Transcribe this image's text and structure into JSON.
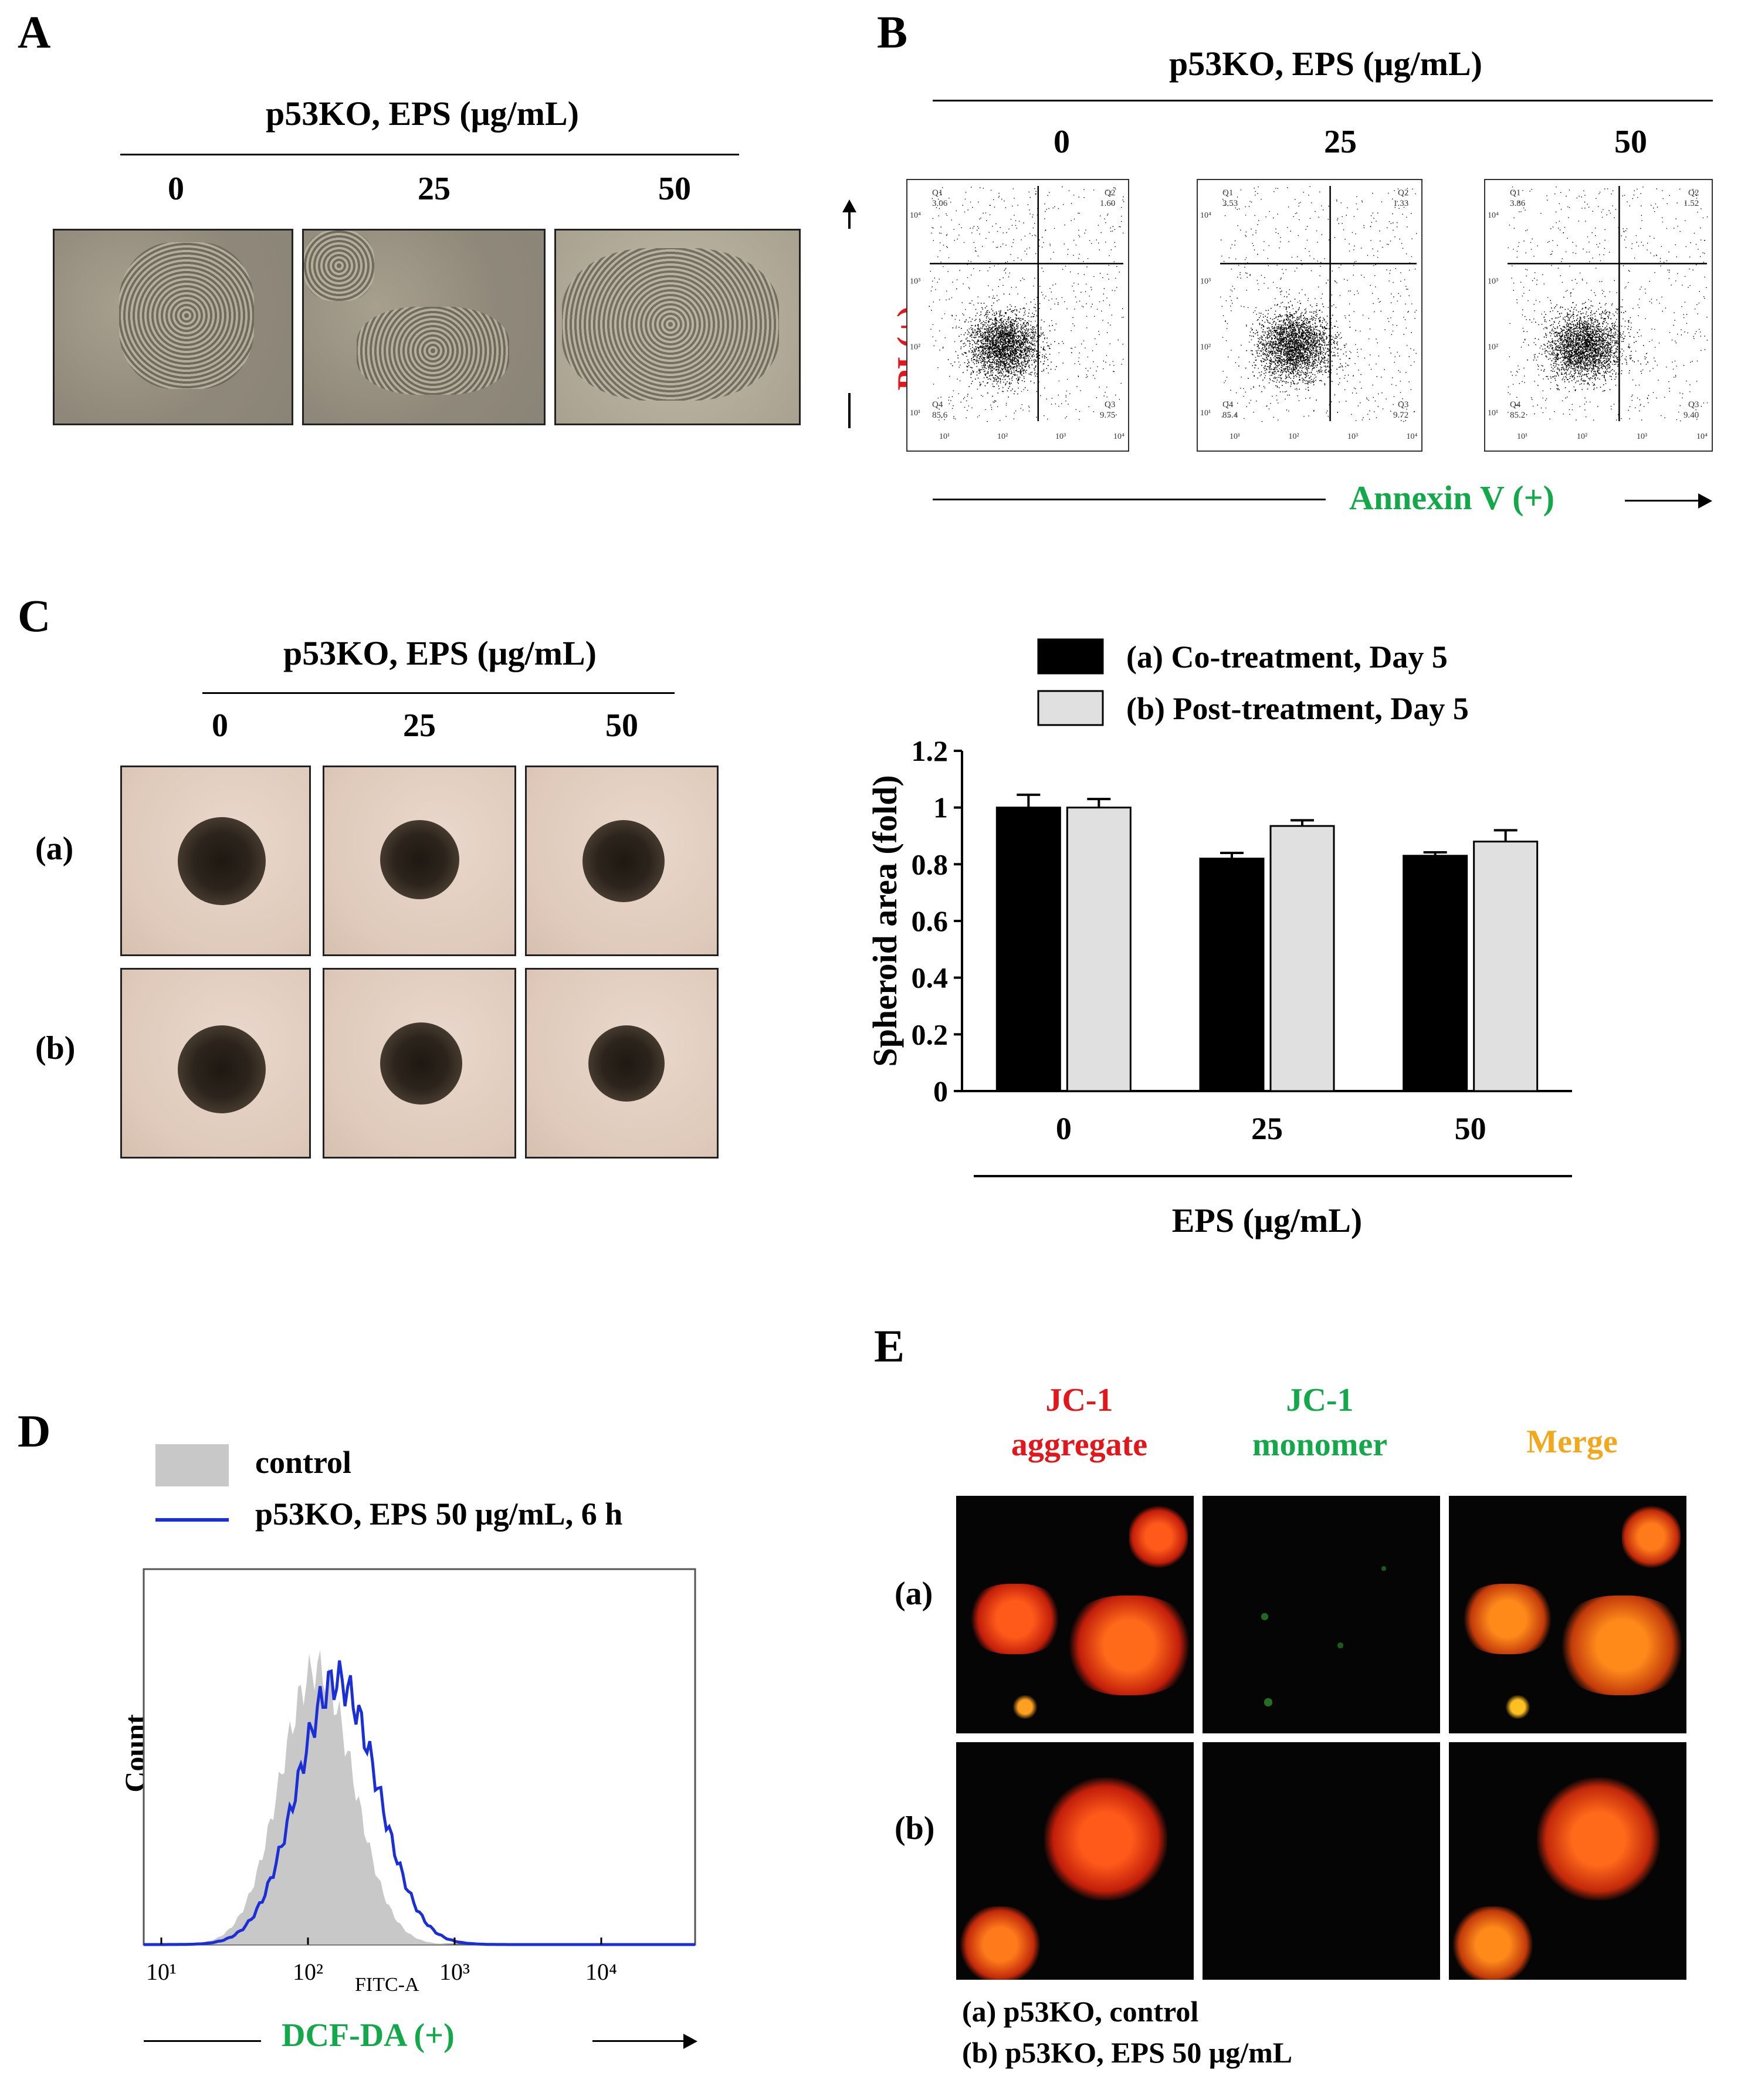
{
  "panel_A": {
    "label": "A",
    "title": "p53KO, EPS (μg/mL)",
    "doses": [
      "0",
      "25",
      "50"
    ]
  },
  "panel_B": {
    "label": "B",
    "title": "p53KO, EPS (μg/mL)",
    "doses": [
      "0",
      "25",
      "50"
    ],
    "y_axis": "PI (+)",
    "x_axis": "Annexin V (+)",
    "plots": [
      {
        "q1": "3.06",
        "q2": "1.60",
        "q3": "9.75",
        "q4": "85.6"
      },
      {
        "q1": "3.53",
        "q2": "1.33",
        "q3": "9.72",
        "q4": "85.4"
      },
      {
        "q1": "3.86",
        "q2": "1.52",
        "q3": "9.40",
        "q4": "85.2"
      }
    ],
    "quad_names": [
      "Q1",
      "Q2",
      "Q3",
      "Q4"
    ],
    "ticks": [
      "10¹",
      "10²",
      "10³",
      "10⁴"
    ]
  },
  "panel_C": {
    "label": "C",
    "title": "p53KO, EPS (μg/mL)",
    "doses": [
      "0",
      "25",
      "50"
    ],
    "rows": [
      "(a)",
      "(b)"
    ]
  },
  "chart_data": {
    "type": "bar",
    "categories": [
      "0",
      "25",
      "50"
    ],
    "series": [
      {
        "name": "(a) Co-treatment, Day 5",
        "values": [
          1.0,
          0.82,
          0.83
        ],
        "errors": [
          0.045,
          0.02,
          0.012
        ],
        "color": "#000000"
      },
      {
        "name": "(b) Post-treatment, Day 5",
        "values": [
          1.0,
          0.935,
          0.88
        ],
        "errors": [
          0.03,
          0.02,
          0.04
        ],
        "color": "#e0e0e0"
      }
    ],
    "ylabel": "Spheroid area (fold)",
    "xlabel": "EPS (μg/mL)",
    "ylim": [
      0,
      1.2
    ],
    "yticks": [
      "0",
      "0.2",
      "0.4",
      "0.6",
      "0.8",
      "1",
      "1.2"
    ],
    "legend": "top"
  },
  "panel_D": {
    "label": "D",
    "legend": [
      "control",
      "p53KO, EPS 50 μg/mL, 6 h"
    ],
    "ylabel": "Count",
    "xlabel": "FITC-A",
    "axis_label": "DCF-DA (+)",
    "ticks": [
      "10¹",
      "10²",
      "10³",
      "10⁴"
    ]
  },
  "panel_E": {
    "label": "E",
    "col1": [
      "JC-1",
      "aggregate"
    ],
    "col2": [
      "JC-1",
      "monomer"
    ],
    "col3": "Merge",
    "rows": [
      "(a)",
      "(b)"
    ],
    "caption": [
      "(a) p53KO, control",
      "(b) p53KO, EPS 50 μg/mL"
    ]
  },
  "colors": {
    "red": "#e3161b",
    "green": "#13a84a",
    "orange": "#f2a81c",
    "blue": "#1a2fd6"
  }
}
